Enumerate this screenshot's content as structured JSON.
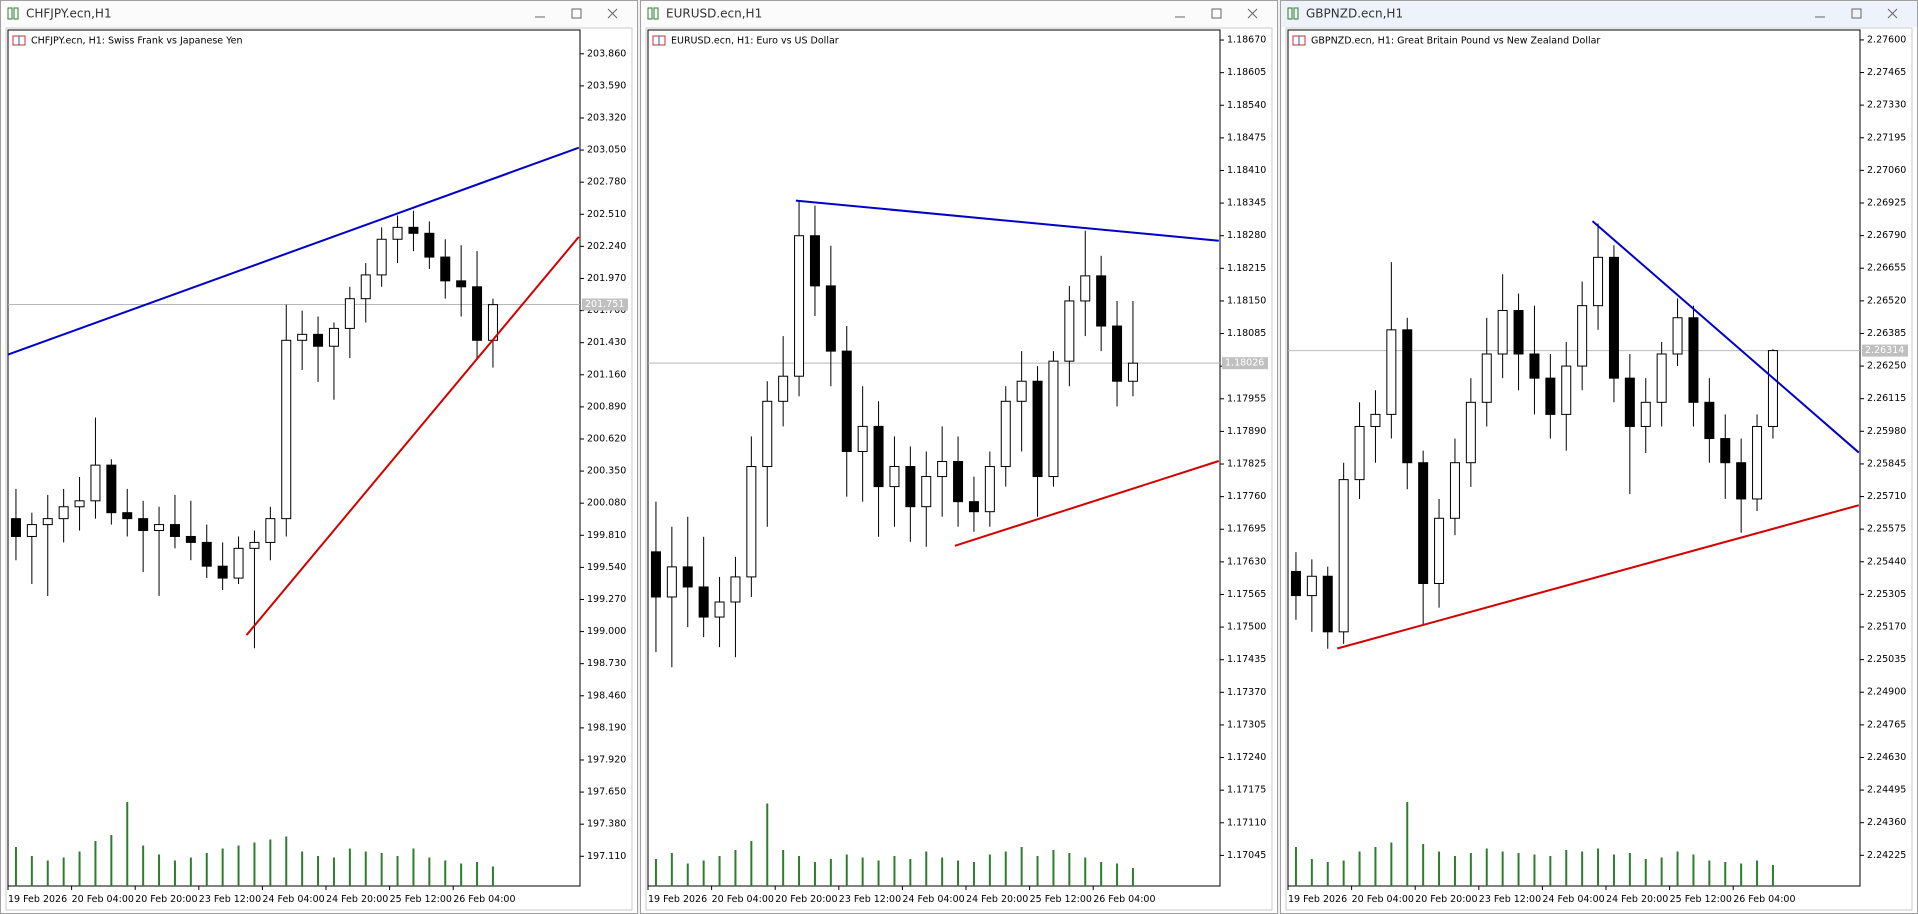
{
  "chart_data": [
    {
      "type": "candlestick",
      "title": "CHFJPY.ecn,H1",
      "subtitle": "CHFJPY.ecn, H1:  Swiss Frank vs Japanese Yen",
      "categories": [
        "19 Feb 2026",
        null,
        null,
        null,
        "20 Feb 04:00",
        null,
        null,
        null,
        "20 Feb 20:00",
        null,
        null,
        null,
        "23 Feb 12:00",
        null,
        null,
        null,
        "24 Feb 04:00",
        null,
        null,
        null,
        "24 Feb 20:00",
        null,
        null,
        null,
        "25 Feb 12:00",
        null,
        null,
        null,
        "26 Feb 04:00",
        null,
        null
      ],
      "ohlc": [
        [
          199.95,
          200.2,
          199.6,
          199.8
        ],
        [
          199.8,
          200.0,
          199.4,
          199.9
        ],
        [
          199.9,
          200.15,
          199.3,
          199.95
        ],
        [
          199.95,
          200.2,
          199.75,
          200.05
        ],
        [
          200.05,
          200.3,
          199.85,
          200.1
        ],
        [
          200.1,
          200.8,
          199.95,
          200.4
        ],
        [
          200.4,
          200.45,
          199.9,
          200.0
        ],
        [
          200.0,
          200.2,
          199.8,
          199.95
        ],
        [
          199.95,
          200.1,
          199.5,
          199.85
        ],
        [
          199.85,
          200.05,
          199.3,
          199.9
        ],
        [
          199.9,
          200.15,
          199.7,
          199.8
        ],
        [
          199.8,
          200.1,
          199.6,
          199.75
        ],
        [
          199.75,
          199.9,
          199.45,
          199.55
        ],
        [
          199.55,
          199.75,
          199.35,
          199.45
        ],
        [
          199.45,
          199.8,
          199.4,
          199.7
        ],
        [
          199.7,
          199.85,
          198.86,
          199.75
        ],
        [
          199.75,
          200.05,
          199.6,
          199.95
        ],
        [
          199.95,
          201.75,
          199.8,
          201.45
        ],
        [
          201.45,
          201.7,
          201.2,
          201.5
        ],
        [
          201.5,
          201.65,
          201.1,
          201.4
        ],
        [
          201.4,
          201.6,
          200.95,
          201.55
        ],
        [
          201.55,
          201.9,
          201.3,
          201.8
        ],
        [
          201.8,
          202.1,
          201.6,
          202.0
        ],
        [
          202.0,
          202.4,
          201.9,
          202.3
        ],
        [
          202.3,
          202.5,
          202.1,
          202.4
        ],
        [
          202.4,
          202.54,
          202.2,
          202.35
        ],
        [
          202.35,
          202.45,
          202.05,
          202.15
        ],
        [
          202.15,
          202.3,
          201.8,
          201.95
        ],
        [
          201.95,
          202.25,
          201.65,
          201.9
        ],
        [
          201.9,
          202.2,
          201.3,
          201.45
        ],
        [
          201.45,
          201.8,
          201.22,
          201.75
        ]
      ],
      "volumes": [
        2600,
        2000,
        1700,
        1900,
        2300,
        3000,
        3400,
        5600,
        2700,
        2100,
        1700,
        1900,
        2200,
        2500,
        2700,
        2900,
        3100,
        3300,
        2300,
        2000,
        1900,
        2500,
        2300,
        2200,
        2000,
        2500,
        1900,
        1700,
        1500,
        1600,
        1300
      ],
      "last_price": 201.751,
      "trendlines": [
        {
          "color": "#0000c8",
          "points": [
            [
              -0.5,
              201.33
            ],
            [
              35.4,
              203.07
            ]
          ]
        },
        {
          "color": "#d40000",
          "points": [
            [
              14.5,
              198.97
            ],
            [
              35.4,
              202.32
            ]
          ]
        }
      ],
      "up_color": "#ffffff",
      "down_color": "#000000",
      "volume_color": "#2e7d2e",
      "ylim": [
        196.86,
        204.06
      ],
      "yticks": [
        {
          "value": 203.86,
          "label": "203.860"
        },
        {
          "value": 203.59,
          "label": "203.590"
        },
        {
          "value": 203.32,
          "label": "203.320"
        },
        {
          "value": 203.05,
          "label": "203.050"
        },
        {
          "value": 202.78,
          "label": "202.780"
        },
        {
          "value": 202.51,
          "label": "202.510"
        },
        {
          "value": 202.24,
          "label": "202.240"
        },
        {
          "value": 201.97,
          "label": "201.970"
        },
        {
          "value": 201.7,
          "label": "201.700"
        },
        {
          "value": 201.43,
          "label": "201.430"
        },
        {
          "value": 201.16,
          "label": "201.160"
        },
        {
          "value": 200.89,
          "label": "200.890"
        },
        {
          "value": 200.62,
          "label": "200.620"
        },
        {
          "value": 200.35,
          "label": "200.350"
        },
        {
          "value": 200.08,
          "label": "200.080"
        },
        {
          "value": 199.81,
          "label": "199.810"
        },
        {
          "value": 199.54,
          "label": "199.540"
        },
        {
          "value": 199.27,
          "label": "199.270"
        },
        {
          "value": 199,
          "label": "199.000"
        },
        {
          "value": 198.73,
          "label": "198.730"
        },
        {
          "value": 198.46,
          "label": "198.460"
        },
        {
          "value": 198.19,
          "label": "198.190"
        },
        {
          "value": 197.92,
          "label": "197.920"
        },
        {
          "value": 197.65,
          "label": "197.650"
        },
        {
          "value": 197.38,
          "label": "197.380"
        },
        {
          "value": 197.11,
          "label": "197.110"
        }
      ]
    },
    {
      "type": "candlestick",
      "title": "EURUSD.ecn,H1",
      "subtitle": "EURUSD.ecn, H1:  Euro vs US Dollar",
      "categories": [
        "19 Feb 2026",
        null,
        null,
        null,
        "20 Feb 04:00",
        null,
        null,
        null,
        "20 Feb 20:00",
        null,
        null,
        null,
        "23 Feb 12:00",
        null,
        null,
        null,
        "24 Feb 04:00",
        null,
        null,
        null,
        "24 Feb 20:00",
        null,
        null,
        null,
        "25 Feb 12:00",
        null,
        null,
        null,
        "26 Feb 04:00",
        null,
        null
      ],
      "ohlc": [
        [
          1.1765,
          1.1775,
          1.1745,
          1.1756
        ],
        [
          1.1756,
          1.177,
          1.1742,
          1.1762
        ],
        [
          1.1762,
          1.1772,
          1.175,
          1.1758
        ],
        [
          1.1758,
          1.1768,
          1.1748,
          1.1752
        ],
        [
          1.1752,
          1.176,
          1.1746,
          1.1755
        ],
        [
          1.1755,
          1.1764,
          1.1744,
          1.176
        ],
        [
          1.176,
          1.1788,
          1.1756,
          1.1782
        ],
        [
          1.1782,
          1.1799,
          1.177,
          1.1795
        ],
        [
          1.1795,
          1.1808,
          1.179,
          1.18
        ],
        [
          1.18,
          1.1835,
          1.1796,
          1.1828
        ],
        [
          1.1828,
          1.1834,
          1.1812,
          1.1818
        ],
        [
          1.1818,
          1.1826,
          1.1798,
          1.1805
        ],
        [
          1.1805,
          1.181,
          1.1776,
          1.1785
        ],
        [
          1.1785,
          1.1798,
          1.1775,
          1.179
        ],
        [
          1.179,
          1.1795,
          1.1768,
          1.1778
        ],
        [
          1.1778,
          1.1788,
          1.177,
          1.1782
        ],
        [
          1.1782,
          1.1786,
          1.1767,
          1.1774
        ],
        [
          1.1774,
          1.1785,
          1.1766,
          1.178
        ],
        [
          1.178,
          1.179,
          1.1772,
          1.1783
        ],
        [
          1.1783,
          1.1788,
          1.177,
          1.1775
        ],
        [
          1.1775,
          1.178,
          1.1769,
          1.1773
        ],
        [
          1.1773,
          1.1785,
          1.177,
          1.1782
        ],
        [
          1.1782,
          1.1798,
          1.1778,
          1.1795
        ],
        [
          1.1795,
          1.1805,
          1.1785,
          1.1799
        ],
        [
          1.1799,
          1.1802,
          1.1772,
          1.178
        ],
        [
          1.178,
          1.1805,
          1.1778,
          1.1803
        ],
        [
          1.1803,
          1.1818,
          1.1798,
          1.1815
        ],
        [
          1.1815,
          1.1829,
          1.1808,
          1.182
        ],
        [
          1.182,
          1.1824,
          1.1805,
          1.181
        ],
        [
          1.181,
          1.1815,
          1.1794,
          1.1799
        ],
        [
          1.1799,
          1.1815,
          1.1796,
          1.18026
        ]
      ],
      "volumes": [
        1800,
        2200,
        1500,
        1700,
        2000,
        2400,
        3000,
        5500,
        2400,
        2000,
        1600,
        1800,
        2100,
        1900,
        1700,
        2000,
        1800,
        2300,
        1900,
        1700,
        1600,
        2100,
        2300,
        2600,
        2000,
        2400,
        2200,
        1900,
        1600,
        1500,
        1200
      ],
      "last_price": 1.18026,
      "trendlines": [
        {
          "color": "#0000c8",
          "points": [
            [
              8.8,
              1.1835
            ],
            [
              35.4,
              1.1827
            ]
          ]
        },
        {
          "color": "#d40000",
          "points": [
            [
              18.8,
              1.17662
            ],
            [
              35.4,
              1.17831
            ]
          ]
        }
      ],
      "up_color": "#ffffff",
      "down_color": "#000000",
      "volume_color": "#2e7d2e",
      "ylim": [
        1.16984,
        1.1869
      ],
      "yticks": [
        {
          "value": 1.1867,
          "label": "1.18670"
        },
        1.18605,
        {
          "value": 1.1854,
          "label": "1.18540"
        },
        1.18475,
        {
          "value": 1.1841,
          "label": "1.18410"
        },
        1.18345,
        {
          "value": 1.1828,
          "label": "1.18280"
        },
        1.18215,
        {
          "value": 1.1815,
          "label": "1.18150"
        },
        1.18085,
        {
          "value": 1.1802,
          "label": "1.18020"
        },
        1.17955,
        {
          "value": 1.1789,
          "label": "1.17890"
        },
        1.17825,
        {
          "value": 1.1776,
          "label": "1.17760"
        },
        1.17695,
        {
          "value": 1.1763,
          "label": "1.17630"
        },
        1.17565,
        {
          "value": 1.175,
          "label": "1.17500"
        },
        1.17435,
        {
          "value": 1.1737,
          "label": "1.17370"
        },
        1.17305,
        {
          "value": 1.1724,
          "label": "1.17240"
        },
        1.17175,
        {
          "value": 1.1711,
          "label": "1.17110"
        },
        1.17045
      ]
    },
    {
      "type": "candlestick",
      "title": "GBPNZD.ecn,H1",
      "subtitle": "GBPNZD.ecn, H1:  Great Britain Pound vs New Zealand Dollar",
      "categories": [
        "19 Feb 2026",
        null,
        null,
        null,
        "20 Feb 04:00",
        null,
        null,
        null,
        "20 Feb 20:00",
        null,
        null,
        null,
        "23 Feb 12:00",
        null,
        null,
        null,
        "24 Feb 04:00",
        null,
        null,
        null,
        "24 Feb 20:00",
        null,
        null,
        null,
        "25 Feb 12:00",
        null,
        null,
        null,
        "26 Feb 04:00",
        null,
        null
      ],
      "ohlc": [
        [
          2.254,
          2.2548,
          2.252,
          2.253
        ],
        [
          2.253,
          2.2545,
          2.2515,
          2.2538
        ],
        [
          2.2538,
          2.2542,
          2.2508,
          2.2515
        ],
        [
          2.2515,
          2.2585,
          2.251,
          2.2578
        ],
        [
          2.2578,
          2.261,
          2.257,
          2.26
        ],
        [
          2.26,
          2.2615,
          2.2585,
          2.2605
        ],
        [
          2.2605,
          2.2668,
          2.2595,
          2.264
        ],
        [
          2.264,
          2.2645,
          2.2574,
          2.2585
        ],
        [
          2.2585,
          2.259,
          2.2518,
          2.2535
        ],
        [
          2.2535,
          2.257,
          2.2525,
          2.2562
        ],
        [
          2.2562,
          2.2595,
          2.2555,
          2.2585
        ],
        [
          2.2585,
          2.262,
          2.2575,
          2.261
        ],
        [
          2.261,
          2.2645,
          2.26,
          2.263
        ],
        [
          2.263,
          2.2663,
          2.262,
          2.2648
        ],
        [
          2.2648,
          2.2655,
          2.2615,
          2.263
        ],
        [
          2.263,
          2.265,
          2.2605,
          2.262
        ],
        [
          2.262,
          2.263,
          2.2595,
          2.2605
        ],
        [
          2.2605,
          2.2635,
          2.259,
          2.2625
        ],
        [
          2.2625,
          2.266,
          2.2615,
          2.265
        ],
        [
          2.265,
          2.2684,
          2.264,
          2.267
        ],
        [
          2.267,
          2.2675,
          2.261,
          2.262
        ],
        [
          2.262,
          2.263,
          2.2572,
          2.26
        ],
        [
          2.26,
          2.262,
          2.2589,
          2.261
        ],
        [
          2.261,
          2.2635,
          2.26,
          2.263
        ],
        [
          2.263,
          2.2653,
          2.2625,
          2.2645
        ],
        [
          2.2645,
          2.265,
          2.26,
          2.261
        ],
        [
          2.261,
          2.262,
          2.2585,
          2.2595
        ],
        [
          2.2595,
          2.2605,
          2.257,
          2.2585
        ],
        [
          2.2585,
          2.2595,
          2.2556,
          2.257
        ],
        [
          2.257,
          2.2605,
          2.2565,
          2.26
        ],
        [
          2.26,
          2.2632,
          2.2595,
          2.26314
        ]
      ],
      "volumes": [
        2600,
        1800,
        1600,
        1700,
        2300,
        2600,
        2900,
        5600,
        2800,
        2300,
        2000,
        2200,
        2500,
        2300,
        2200,
        2100,
        2000,
        2400,
        2300,
        2500,
        2100,
        2200,
        1800,
        1900,
        2300,
        2100,
        1700,
        1600,
        1500,
        1700,
        1400
      ],
      "last_price": 2.26314,
      "trendlines": [
        {
          "color": "#0000c8",
          "points": [
            [
              18.65,
              2.2685
            ],
            [
              35.4,
              2.25892
            ]
          ]
        },
        {
          "color": "#d40000",
          "points": [
            [
              2.6,
              2.25081
            ],
            [
              35.4,
              2.25674
            ]
          ]
        }
      ],
      "up_color": "#ffffff",
      "down_color": "#000000",
      "volume_color": "#2e7d2e",
      "ylim": [
        2.24098,
        2.27641
      ],
      "yticks": [
        {
          "value": 2.276,
          "label": "2.27600"
        },
        2.27465,
        {
          "value": 2.2733,
          "label": "2.27330"
        },
        2.27195,
        {
          "value": 2.2706,
          "label": "2.27060"
        },
        2.26925,
        {
          "value": 2.2679,
          "label": "2.26790"
        },
        2.26655,
        {
          "value": 2.2652,
          "label": "2.26520"
        },
        2.26385,
        {
          "value": 2.2625,
          "label": "2.26250"
        },
        2.26115,
        {
          "value": 2.2598,
          "label": "2.25980"
        },
        2.25845,
        {
          "value": 2.2571,
          "label": "2.25710"
        },
        2.25575,
        {
          "value": 2.2544,
          "label": "2.25440"
        },
        2.25305,
        {
          "value": 2.2517,
          "label": "2.25170"
        },
        2.25035,
        {
          "value": 2.249,
          "label": "2.24900"
        },
        2.24765,
        {
          "value": 2.2463,
          "label": "2.24630"
        },
        2.24495,
        {
          "value": 2.2436,
          "label": "2.24360"
        },
        2.24225
      ]
    }
  ]
}
